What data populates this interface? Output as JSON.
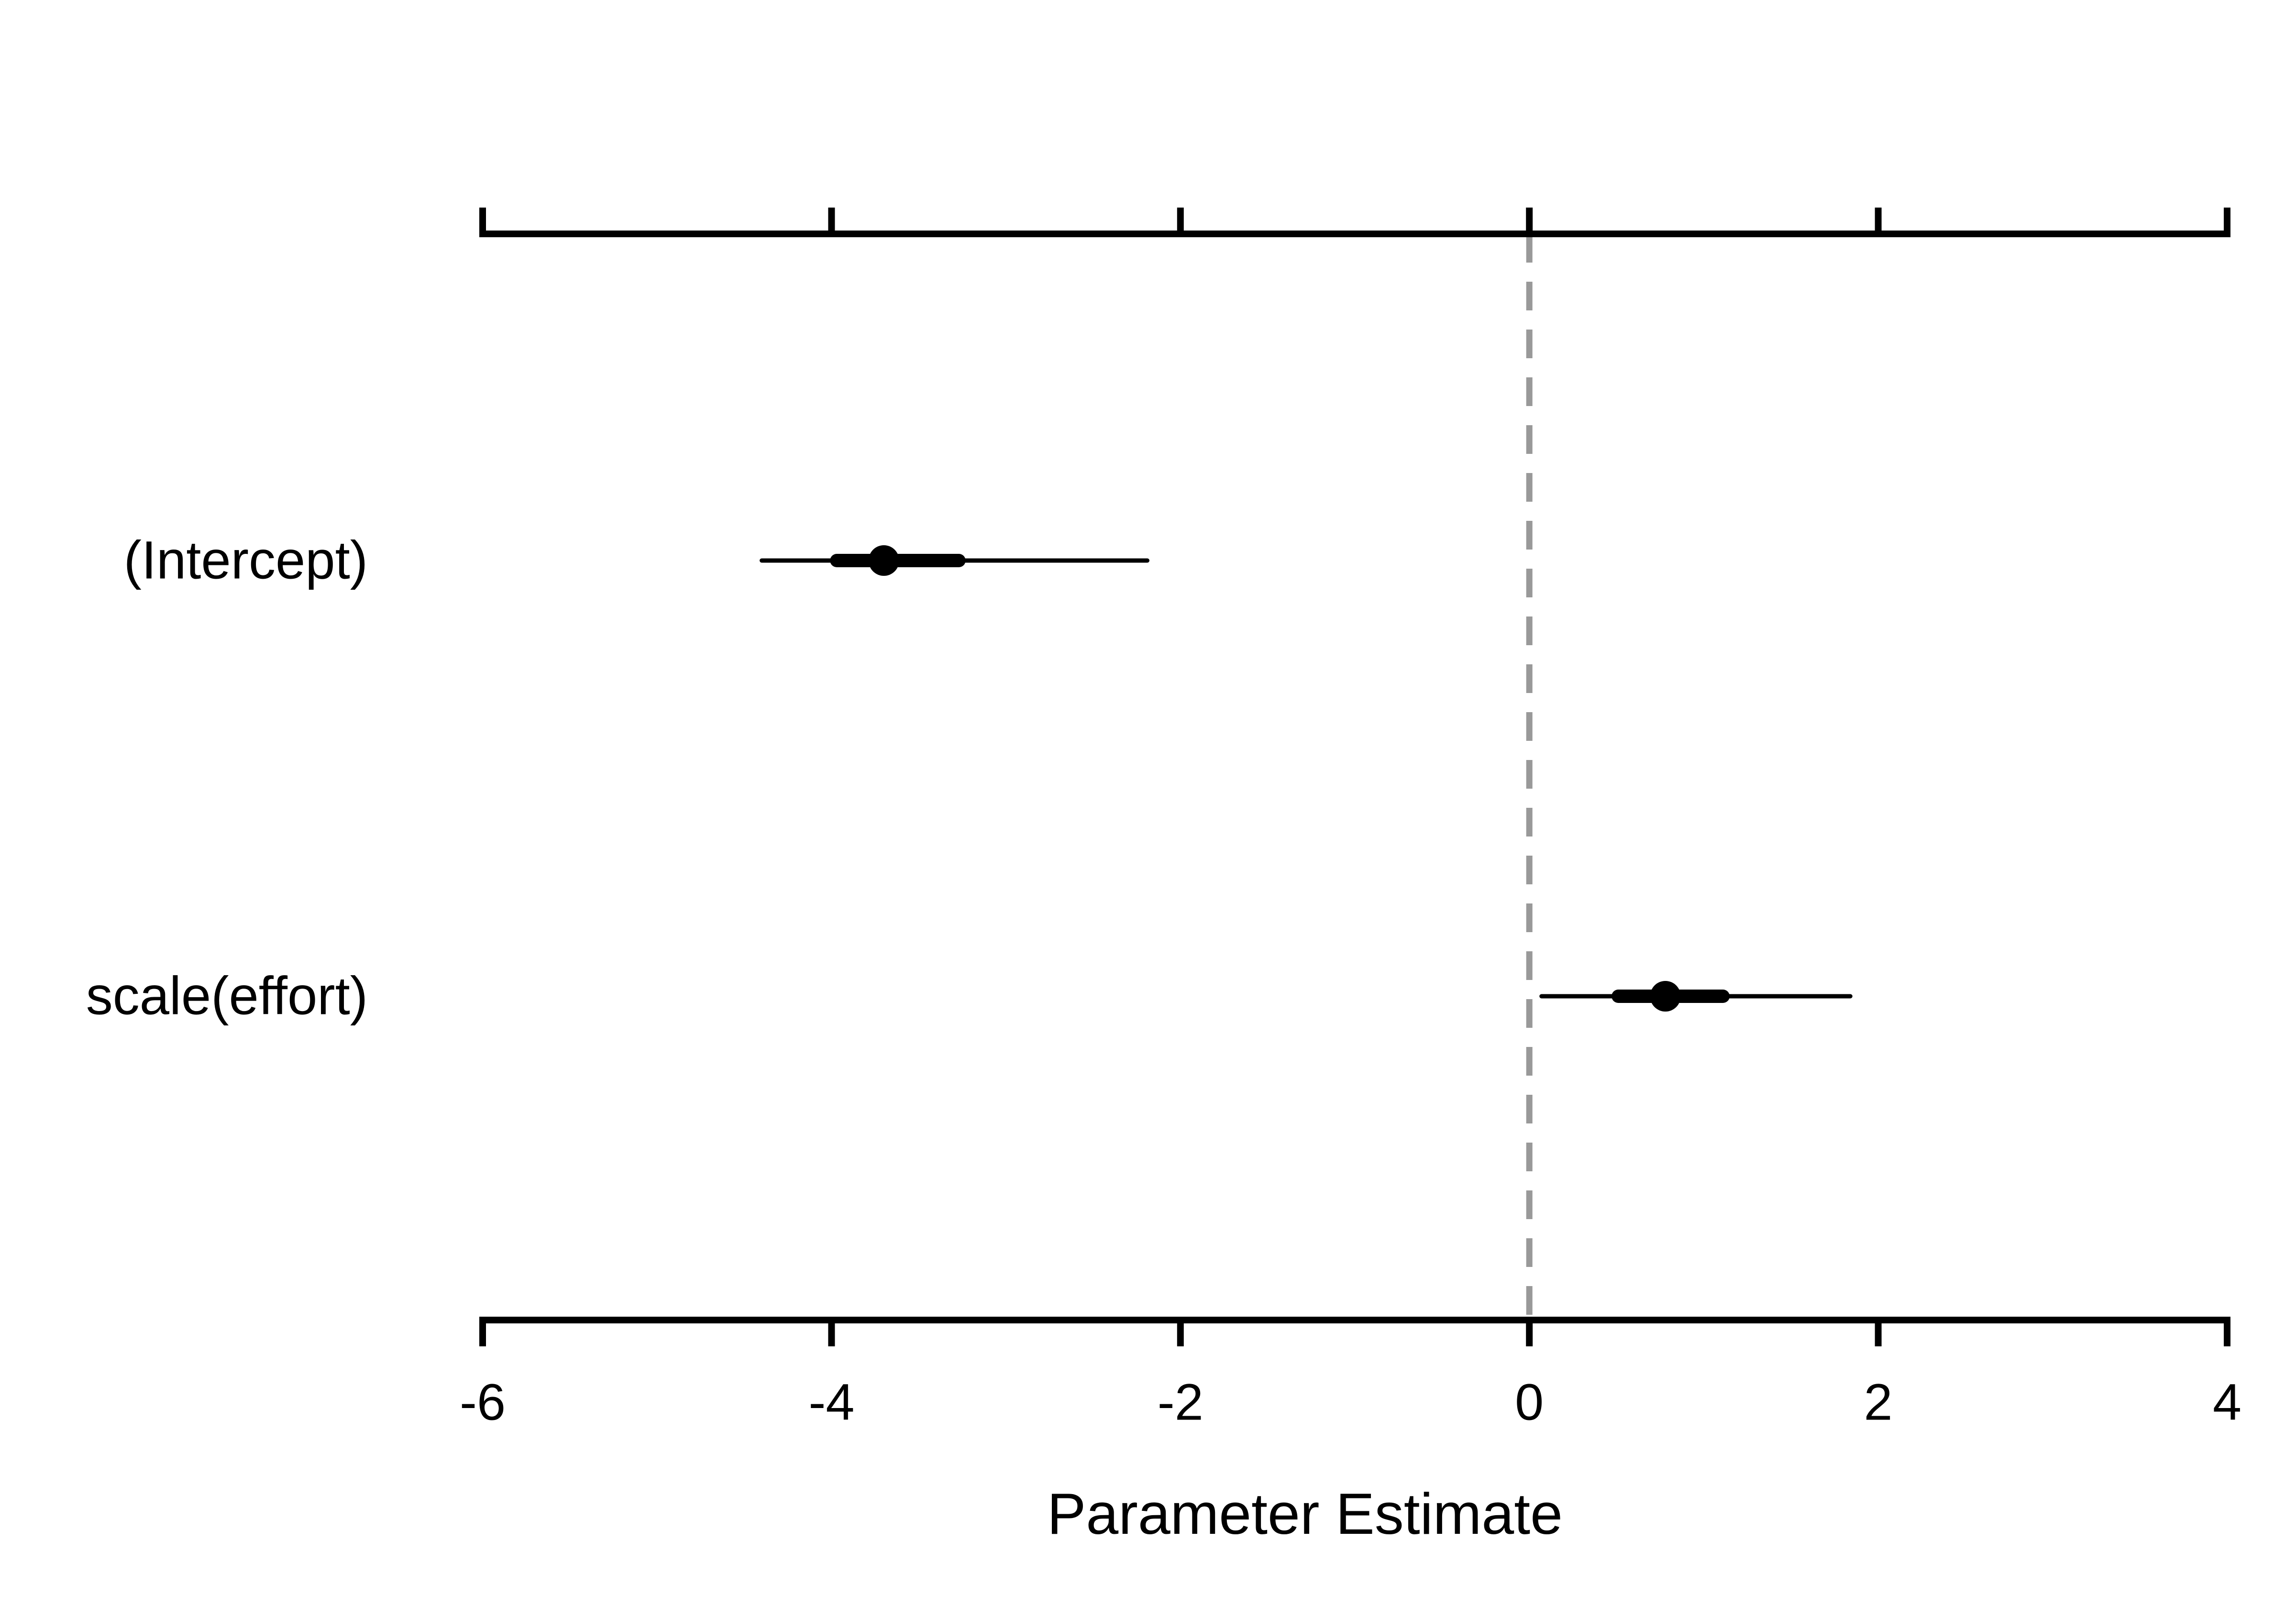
{
  "chart_data": {
    "type": "forest",
    "x_label": "Parameter Estimate",
    "categories": [
      "(Intercept)",
      "scale(effort)"
    ],
    "values": [
      -3.7,
      0.78
    ],
    "inner_low": [
      -3.97,
      0.51
    ],
    "inner_high": [
      -3.27,
      1.11
    ],
    "outer_low": [
      -4.4,
      0.07
    ],
    "outer_high": [
      -2.19,
      1.84
    ],
    "color": "#000000",
    "reference_line": 0,
    "reference_color": "#999999",
    "xlim": [
      -6,
      4
    ],
    "xticks": [
      -6,
      -4,
      -2,
      0,
      2,
      4
    ],
    "top_axis": true
  }
}
